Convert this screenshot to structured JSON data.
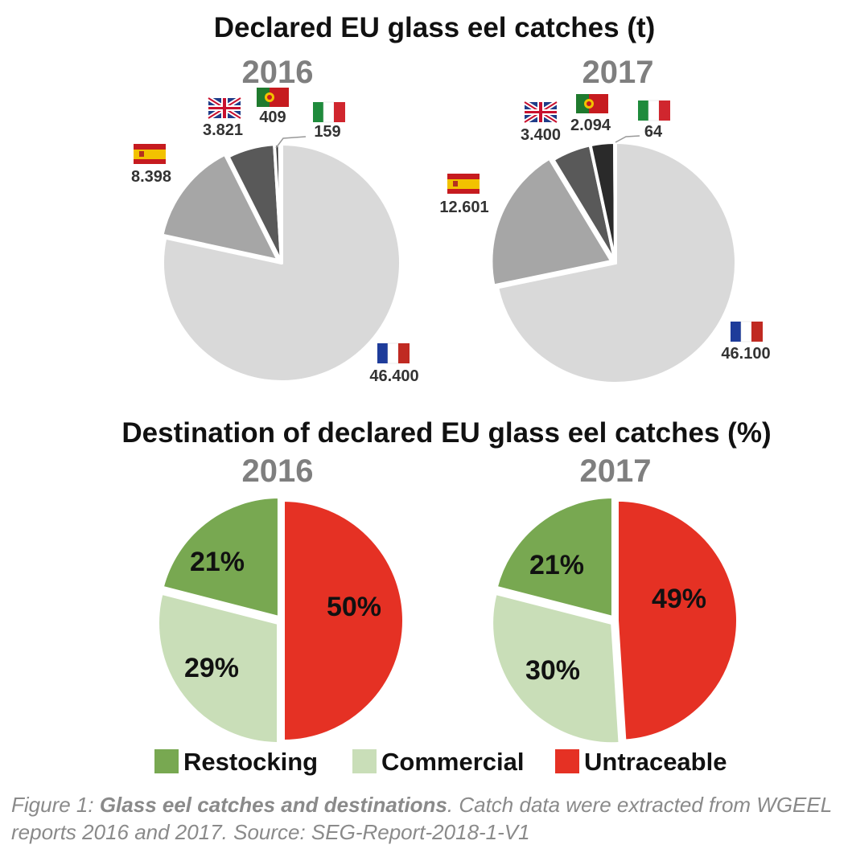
{
  "colors": {
    "title": "#111111",
    "year": "#7f7f7f",
    "label": "#333333",
    "france": "#d9d9d9",
    "spain": "#a6a6a6",
    "uk": "#595959",
    "portugal": "#2a2a2a",
    "italy": "#f5b335",
    "restocking": "#78a851",
    "commercial": "#c9deb8",
    "untraceable": "#e53124"
  },
  "chart_data": [
    {
      "type": "pie",
      "title": "Declared EU glass eel catches (t)",
      "subtitle": "2016",
      "categories": [
        "France",
        "Spain",
        "United Kingdom",
        "Portugal",
        "Italy"
      ],
      "values": [
        46400,
        8398,
        3821,
        409,
        159
      ],
      "value_labels": [
        "46.400",
        "8.398",
        "3.821",
        "409",
        "159"
      ],
      "legend": "flag-icons"
    },
    {
      "type": "pie",
      "title": "Declared EU glass eel catches (t)",
      "subtitle": "2017",
      "categories": [
        "France",
        "Spain",
        "United Kingdom",
        "Portugal",
        "Italy"
      ],
      "values": [
        46100,
        12601,
        3400,
        2094,
        64
      ],
      "value_labels": [
        "46.100",
        "12.601",
        "3.400",
        "2.094",
        "64"
      ],
      "legend": "flag-icons"
    },
    {
      "type": "pie",
      "title": "Destination of declared EU glass eel catches (%)",
      "subtitle": "2016",
      "categories": [
        "Untraceable",
        "Commercial",
        "Restocking"
      ],
      "values": [
        50,
        29,
        21
      ],
      "value_labels": [
        "50%",
        "29%",
        "21%"
      ],
      "legend": "bottom"
    },
    {
      "type": "pie",
      "title": "Destination of declared EU glass eel catches (%)",
      "subtitle": "2017",
      "categories": [
        "Untraceable",
        "Commercial",
        "Restocking"
      ],
      "values": [
        49,
        30,
        21
      ],
      "value_labels": [
        "49%",
        "30%",
        "21%"
      ],
      "legend": "bottom"
    }
  ],
  "legend": {
    "restocking": "Restocking",
    "commercial": "Commercial",
    "untraceable": "Untraceable"
  },
  "caption": {
    "prefix": "Figure 1: ",
    "bold": "Glass eel catches and destinations",
    "rest": ". Catch data were extracted from WGEEL reports 2016 and 2017. Source: SEG-Report-2018-1-V1"
  }
}
